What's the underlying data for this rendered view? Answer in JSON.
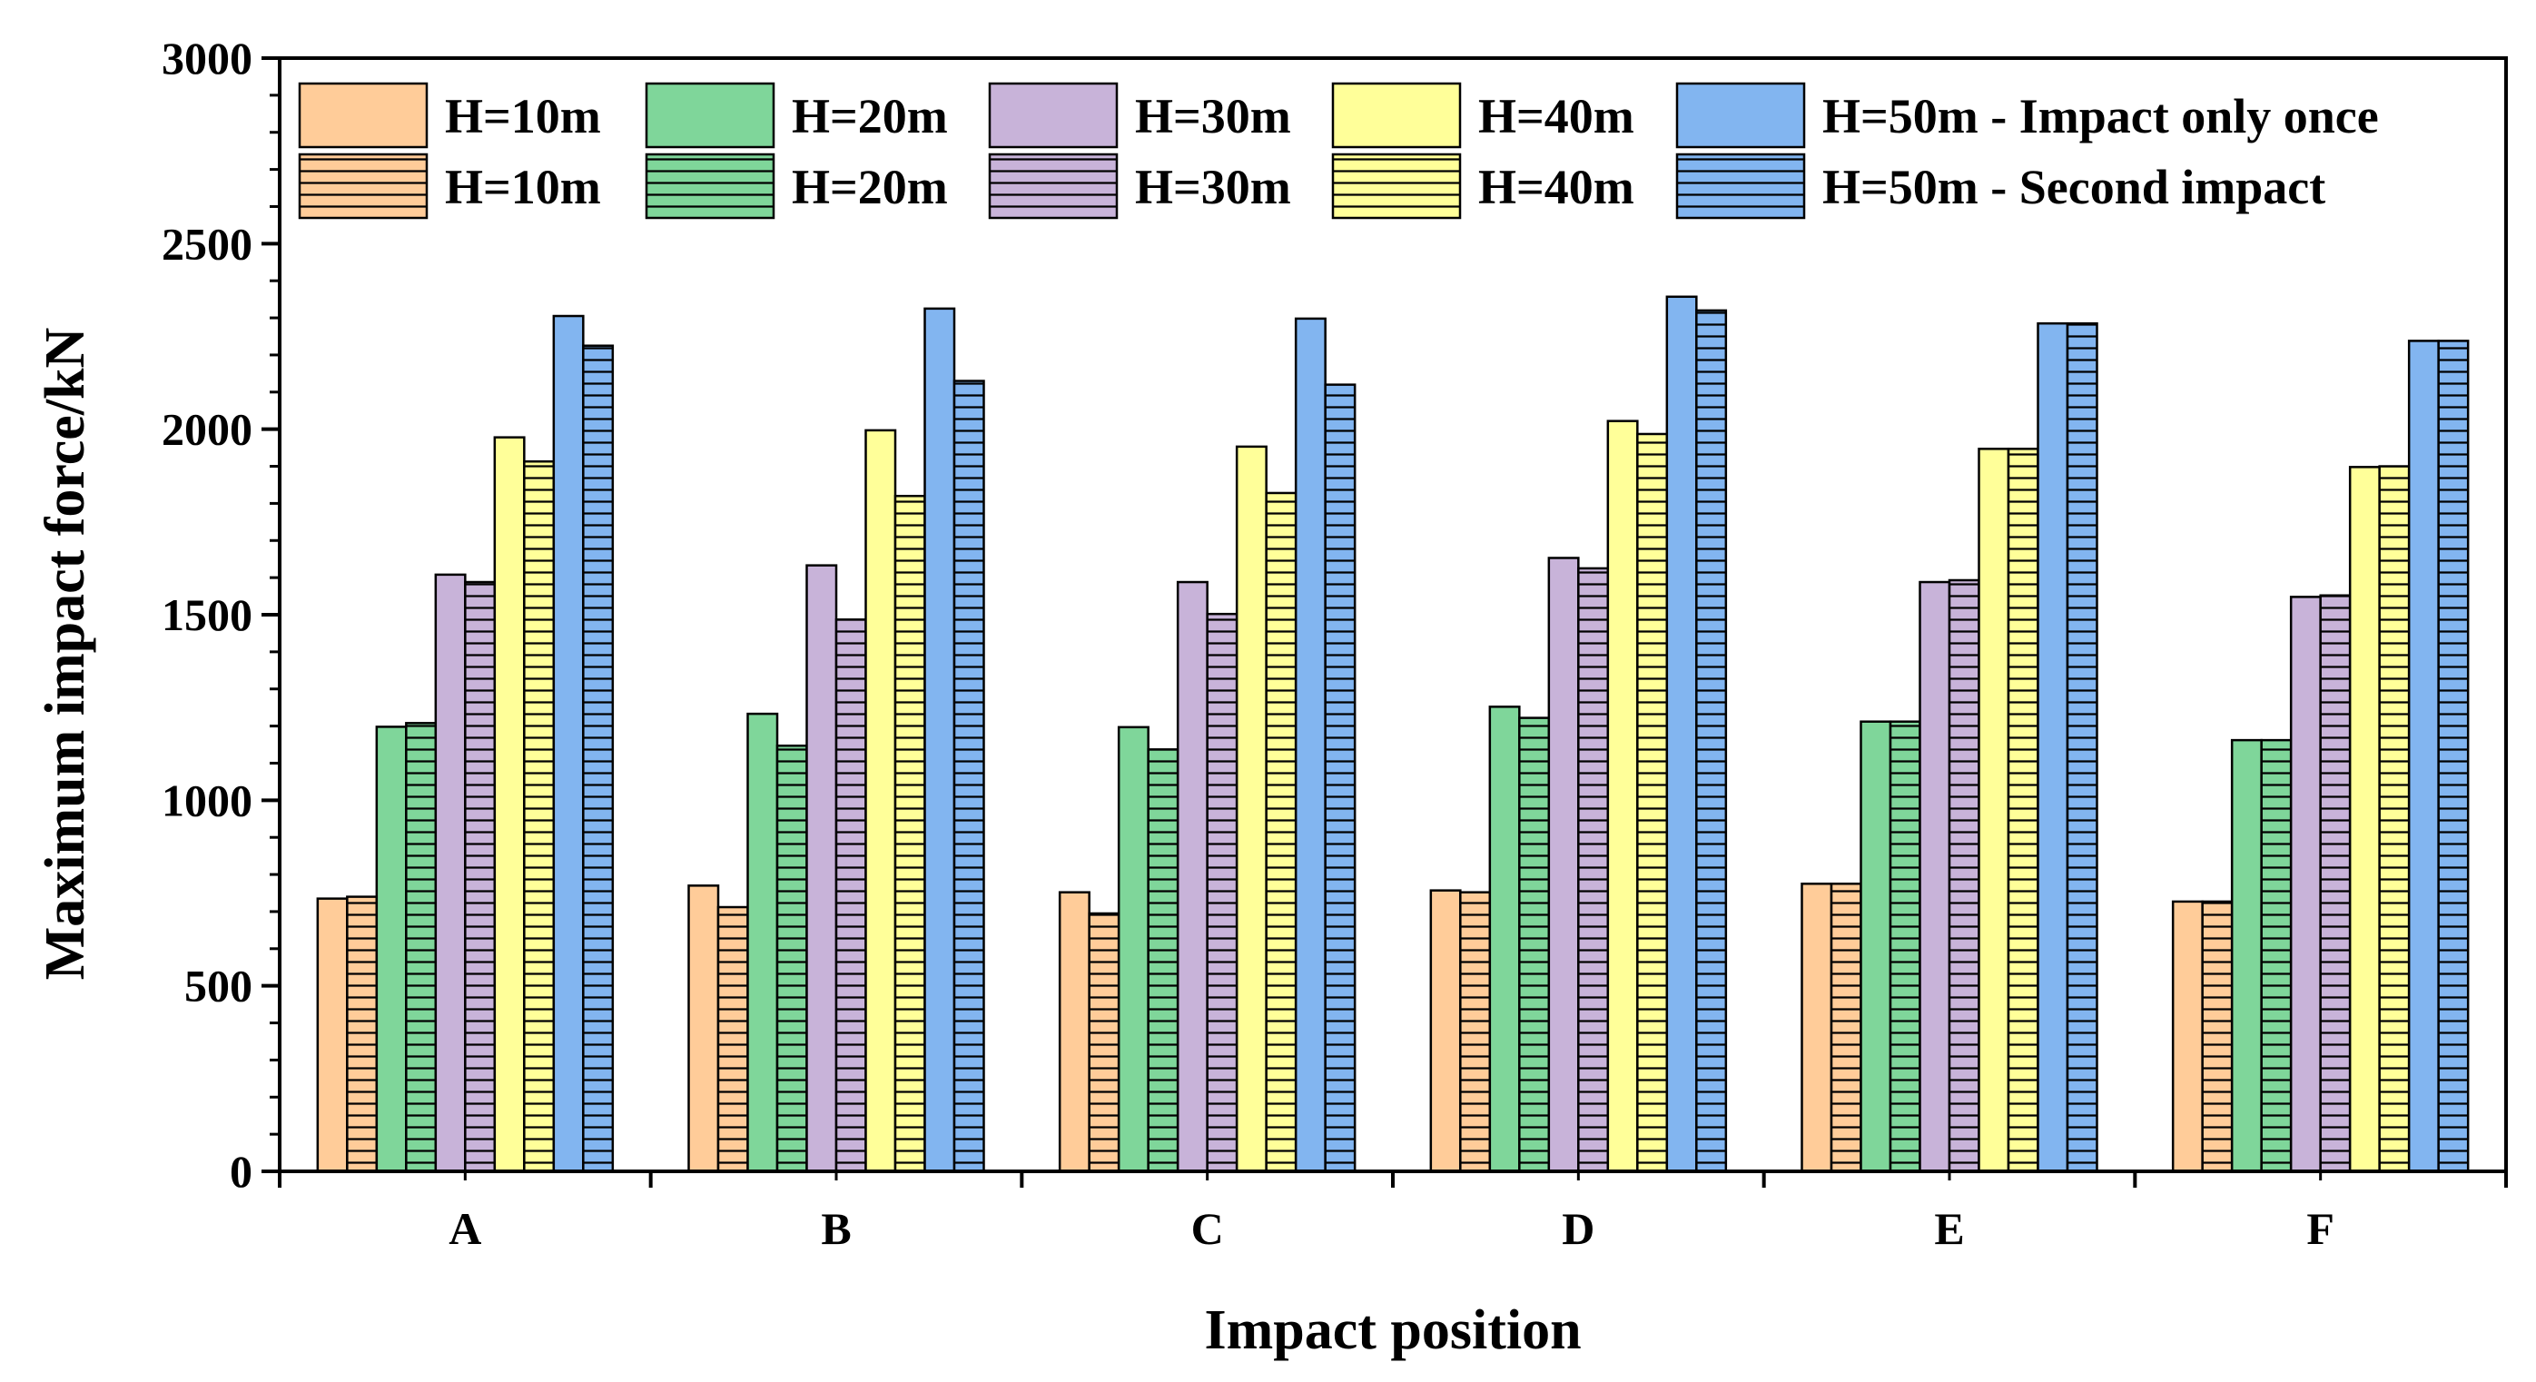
{
  "chart_data": {
    "type": "bar",
    "title": "",
    "xlabel": "Impact position",
    "ylabel": "Maximum impact force/kN",
    "ylim": [
      0,
      3000
    ],
    "yticks": [
      0,
      500,
      1000,
      1500,
      2000,
      2500,
      3000
    ],
    "categories": [
      "A",
      "B",
      "C",
      "D",
      "E",
      "F"
    ],
    "legend_position": "top",
    "series": [
      {
        "name": "H=10m",
        "group": "Impact only once",
        "pattern": "solid",
        "color": "#FFCC99",
        "values": [
          735,
          770,
          752,
          757,
          775,
          727
        ]
      },
      {
        "name": "H=10m",
        "group": "Second impact",
        "pattern": "hatched",
        "color": "#FFCC99",
        "values": [
          740,
          712,
          695,
          752,
          775,
          727
        ]
      },
      {
        "name": "H=20m",
        "group": "Impact only once",
        "pattern": "solid",
        "color": "#7FD69A",
        "values": [
          1198,
          1233,
          1197,
          1252,
          1212,
          1162
        ]
      },
      {
        "name": "H=20m",
        "group": "Second impact",
        "pattern": "hatched",
        "color": "#7FD69A",
        "values": [
          1208,
          1147,
          1137,
          1222,
          1212,
          1162
        ]
      },
      {
        "name": "H=30m",
        "group": "Impact only once",
        "pattern": "solid",
        "color": "#C8B3D9",
        "values": [
          1608,
          1633,
          1588,
          1653,
          1588,
          1548
        ]
      },
      {
        "name": "H=30m",
        "group": "Second impact",
        "pattern": "hatched",
        "color": "#C8B3D9",
        "values": [
          1588,
          1487,
          1502,
          1625,
          1593,
          1552
        ]
      },
      {
        "name": "H=40m",
        "group": "Impact only once",
        "pattern": "solid",
        "color": "#FFFF99",
        "values": [
          1978,
          1997,
          1953,
          2022,
          1947,
          1898
        ]
      },
      {
        "name": "H=40m",
        "group": "Second impact",
        "pattern": "hatched",
        "color": "#FFFF99",
        "values": [
          1913,
          1820,
          1828,
          1987,
          1947,
          1900
        ]
      },
      {
        "name": "H=50m",
        "group": "Impact only once",
        "pattern": "solid",
        "color": "#82B5F0",
        "values": [
          2305,
          2325,
          2298,
          2357,
          2285,
          2238
        ]
      },
      {
        "name": "H=50m",
        "group": "Second impact",
        "pattern": "hatched",
        "color": "#82B5F0",
        "values": [
          2225,
          2130,
          2120,
          2320,
          2285,
          2238
        ]
      }
    ],
    "legend": {
      "rows": [
        {
          "entries": [
            "H=10m",
            "H=20m",
            "H=30m",
            "H=40m",
            "H=50m - Impact only once"
          ],
          "pattern": "solid"
        },
        {
          "entries": [
            "H=10m",
            "H=20m",
            "H=30m",
            "H=40m",
            "H=50m - Second impact"
          ],
          "pattern": "hatched"
        }
      ],
      "colors": [
        "#FFCC99",
        "#7FD69A",
        "#C8B3D9",
        "#FFFF99",
        "#82B5F0"
      ]
    }
  }
}
